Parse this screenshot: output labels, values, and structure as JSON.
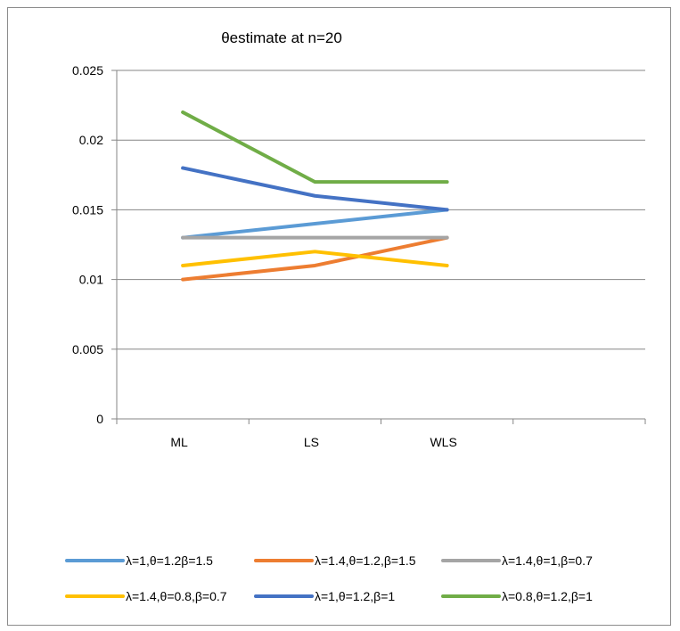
{
  "chart_data": {
    "type": "line",
    "title": "θestimate at n=20",
    "categories": [
      "ML",
      "LS",
      "WLS"
    ],
    "ylim": [
      0,
      0.025
    ],
    "yticks": [
      "0",
      "0.005",
      "0.01",
      "0.015",
      "0.02",
      "0.025"
    ],
    "ytick_values": [
      0,
      0.005,
      0.01,
      0.015,
      0.02,
      0.025
    ],
    "grid": "horizontal",
    "legend_position": "bottom",
    "series": [
      {
        "name": "λ=1,θ=1.2β=1.5",
        "color": "#5b9bd5",
        "values": [
          0.013,
          0.014,
          0.015
        ]
      },
      {
        "name": "λ=1.4,θ=1.2,β=1.5",
        "color": "#ed7d31",
        "values": [
          0.01,
          0.011,
          0.013
        ]
      },
      {
        "name": "λ=1.4,θ=1,β=0.7",
        "color": "#a5a5a5",
        "values": [
          0.013,
          0.013,
          0.013
        ]
      },
      {
        "name": "λ=1.4,θ=0.8,β=0.7",
        "color": "#ffc000",
        "values": [
          0.011,
          0.012,
          0.011
        ]
      },
      {
        "name": "λ=1,θ=1.2,β=1",
        "color": "#4472c4",
        "values": [
          0.018,
          0.016,
          0.015
        ]
      },
      {
        "name": "λ=0.8,θ=1.2,β=1",
        "color": "#70ad47",
        "values": [
          0.022,
          0.017,
          0.017
        ]
      }
    ]
  }
}
